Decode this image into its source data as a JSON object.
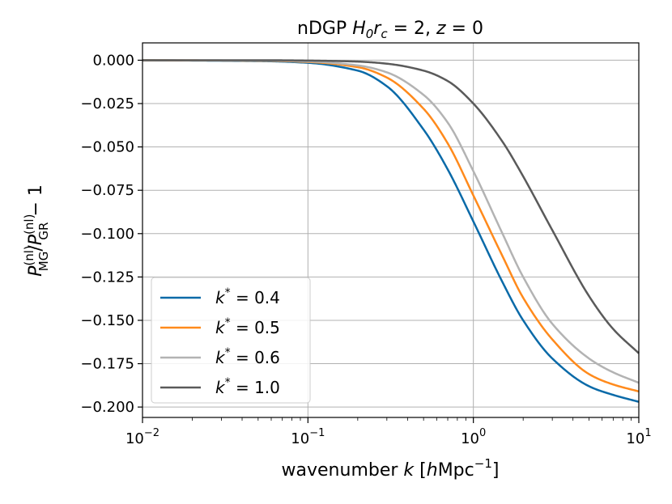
{
  "chart_data": {
    "type": "line",
    "title": {
      "prefix": "nDGP ",
      "H": "H",
      "H_sub": "0",
      "r": "r",
      "r_sub": "c",
      "eq1": " = 2, ",
      "z": "z",
      "eq2": " = 0"
    },
    "xlabel": {
      "prefix": "wavenumber ",
      "k": "k",
      "bracket_open": " [",
      "h": "h",
      "unit": "Mpc",
      "unit_sup": "−1",
      "bracket_close": "]"
    },
    "ylabel": {
      "P1": "P",
      "P1_sup": "(nl)",
      "P1_sub": "MG",
      "slash": "/",
      "P2": "P",
      "P2_sup": "(nl)",
      "P2_sub": "GR",
      "tail": " − 1"
    },
    "xscale": "log",
    "xlim": [
      0.01,
      10
    ],
    "ylim": [
      -0.206,
      0.01
    ],
    "grid": true,
    "legend_position": "lower-left",
    "x_ticks": [
      {
        "base": "10",
        "exp": "−2",
        "value": 0.01
      },
      {
        "base": "10",
        "exp": "−1",
        "value": 0.1
      },
      {
        "base": "10",
        "exp": "0",
        "value": 1
      },
      {
        "base": "10",
        "exp": "1",
        "value": 10
      }
    ],
    "y_ticks": [
      {
        "label": "0.000",
        "value": 0.0
      },
      {
        "label": "−0.025",
        "value": -0.025
      },
      {
        "label": "−0.050",
        "value": -0.05
      },
      {
        "label": "−0.075",
        "value": -0.075
      },
      {
        "label": "−0.100",
        "value": -0.1
      },
      {
        "label": "−0.125",
        "value": -0.125
      },
      {
        "label": "−0.150",
        "value": -0.15
      },
      {
        "label": "−0.175",
        "value": -0.175
      },
      {
        "label": "−0.200",
        "value": -0.2
      }
    ],
    "series": [
      {
        "name": "k* = 0.4",
        "k_prefix": "k",
        "star": "*",
        "eq": " = 0.4",
        "color": "#0a6aa8",
        "x": [
          0.01,
          0.05,
          0.1,
          0.2,
          0.3,
          0.5,
          0.7,
          1.0,
          1.5,
          2.0,
          3.0,
          5.0,
          7.0,
          10.0
        ],
        "y": [
          0.0,
          -0.0005,
          -0.0015,
          -0.006,
          -0.015,
          -0.04,
          -0.063,
          -0.093,
          -0.128,
          -0.15,
          -0.172,
          -0.188,
          -0.193,
          -0.197
        ]
      },
      {
        "name": "k* = 0.5",
        "k_prefix": "k",
        "star": "*",
        "eq": " = 0.5",
        "color": "#ff8a1c",
        "x": [
          0.01,
          0.05,
          0.1,
          0.2,
          0.3,
          0.5,
          0.7,
          1.0,
          1.5,
          2.0,
          3.0,
          5.0,
          7.0,
          10.0
        ],
        "y": [
          0.0,
          -0.0003,
          -0.001,
          -0.004,
          -0.01,
          -0.028,
          -0.048,
          -0.078,
          -0.113,
          -0.137,
          -0.161,
          -0.181,
          -0.187,
          -0.191
        ]
      },
      {
        "name": "k* = 0.6",
        "k_prefix": "k",
        "star": "*",
        "eq": " = 0.6",
        "color": "#b3b3b3",
        "x": [
          0.01,
          0.05,
          0.1,
          0.2,
          0.3,
          0.5,
          0.7,
          1.0,
          1.5,
          2.0,
          3.0,
          5.0,
          7.0,
          10.0
        ],
        "y": [
          0.0,
          -0.0002,
          -0.0007,
          -0.003,
          -0.007,
          -0.02,
          -0.036,
          -0.064,
          -0.1,
          -0.125,
          -0.152,
          -0.172,
          -0.18,
          -0.186
        ]
      },
      {
        "name": "k* = 1.0",
        "k_prefix": "k",
        "star": "*",
        "eq": " = 1.0",
        "color": "#5a5a5a",
        "x": [
          0.01,
          0.05,
          0.1,
          0.2,
          0.3,
          0.5,
          0.7,
          1.0,
          1.5,
          2.0,
          3.0,
          5.0,
          7.0,
          10.0
        ],
        "y": [
          0.0,
          0.0,
          -0.0002,
          -0.0008,
          -0.002,
          -0.006,
          -0.012,
          -0.025,
          -0.047,
          -0.067,
          -0.098,
          -0.136,
          -0.155,
          -0.169
        ]
      }
    ]
  }
}
